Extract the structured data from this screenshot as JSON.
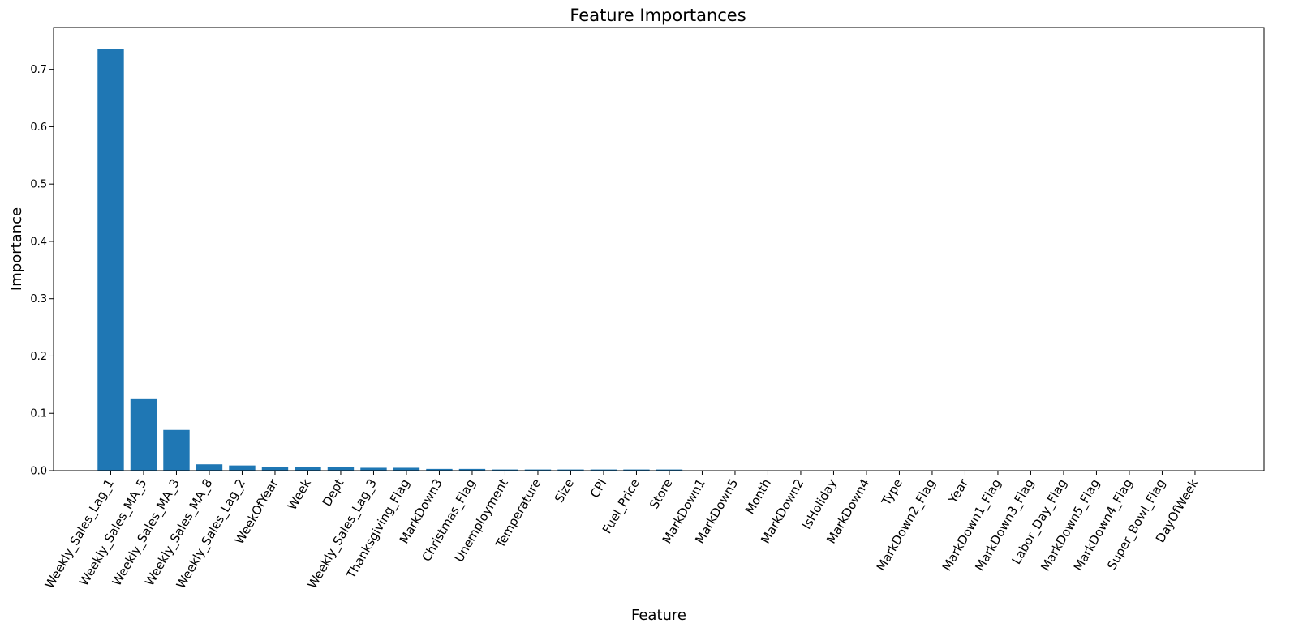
{
  "chart_data": {
    "type": "bar",
    "title": "Feature Importances",
    "xlabel": "Feature",
    "ylabel": "Importance",
    "ylim": [
      0,
      0.773
    ],
    "yticks": [
      "0.0",
      "0.1",
      "0.2",
      "0.3",
      "0.4",
      "0.5",
      "0.6",
      "0.7"
    ],
    "grid": false,
    "bar_color": "#1f77b4",
    "categories": [
      "Weekly_Sales_Lag_1",
      "Weekly_Sales_MA_5",
      "Weekly_Sales_MA_3",
      "Weekly_Sales_MA_8",
      "Weekly_Sales_Lag_2",
      "WeekOfYear",
      "Week",
      "Dept",
      "Weekly_Sales_Lag_3",
      "Thanksgiving_Flag",
      "MarkDown3",
      "Christmas_Flag",
      "Unemployment",
      "Temperature",
      "Size",
      "CPI",
      "Fuel_Price",
      "Store",
      "MarkDown1",
      "MarkDown5",
      "Month",
      "MarkDown2",
      "IsHoliday",
      "MarkDown4",
      "Type",
      "MarkDown2_Flag",
      "Year",
      "MarkDown1_Flag",
      "MarkDown3_Flag",
      "Labor_Day_Flag",
      "MarkDown5_Flag",
      "MarkDown4_Flag",
      "Super_Bowl_Flag",
      "DayOfWeek"
    ],
    "values": [
      0.736,
      0.126,
      0.071,
      0.011,
      0.009,
      0.006,
      0.006,
      0.006,
      0.005,
      0.005,
      0.003,
      0.003,
      0.002,
      0.002,
      0.002,
      0.002,
      0.002,
      0.002,
      0.0005,
      0.0004,
      0.0003,
      0.0003,
      0.0002,
      0.0002,
      0.0001,
      0.0001,
      0.0001,
      0.0001,
      0.0,
      0.0,
      0.0,
      0.0,
      0.0,
      0.0
    ]
  }
}
